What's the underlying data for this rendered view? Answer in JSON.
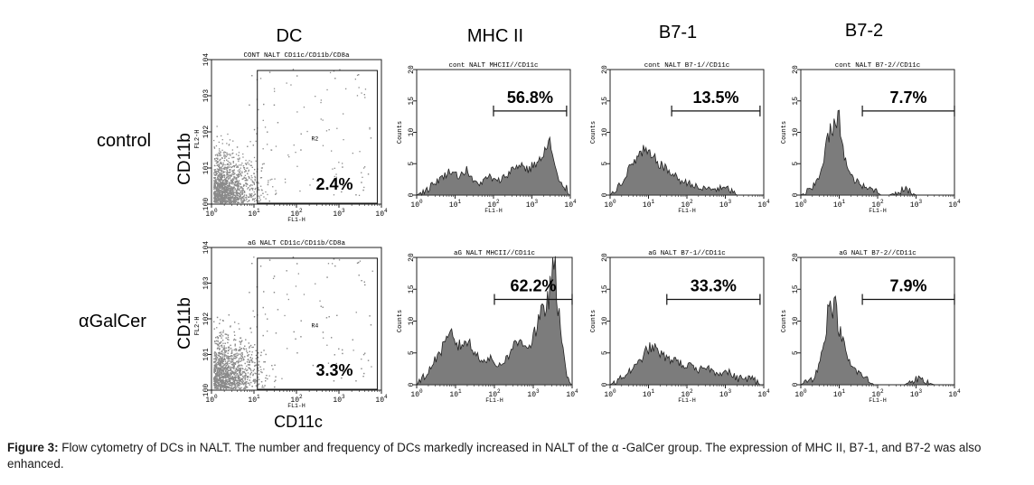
{
  "columns": [
    "DC",
    "MHC II",
    "B7-1",
    "B7-2"
  ],
  "rows": [
    "control",
    "αGalCer"
  ],
  "dot_ylabel": "CD11b",
  "dot_xlabel": "CD11c",
  "chart_data": [
    {
      "type": "scatter",
      "title": "CONT NALT CD11c/CD11b/CD8a",
      "xlabel": "FL1-H",
      "ylabel": "FL2-H",
      "x_scale": "log",
      "xlim": [
        1,
        10000
      ],
      "ylim": [
        1,
        10000
      ],
      "x_ticks": [
        "10^0",
        "10^1",
        "10^2",
        "10^3",
        "10^4"
      ],
      "y_ticks": [
        "10^0",
        "10^1",
        "10^2",
        "10^3",
        "10^4"
      ],
      "gate": {
        "label": "R2",
        "x_range": [
          12,
          8000
        ],
        "y_range": [
          1,
          5000
        ]
      },
      "annotation": "2.4%"
    },
    {
      "type": "area",
      "title": "cont NALT MHCII//CD11c",
      "xlabel": "FL1-H",
      "ylabel": "Counts",
      "x_scale": "log",
      "xlim": [
        1,
        10000
      ],
      "ylim": [
        0,
        20
      ],
      "y_ticks": [
        0,
        5,
        10,
        15,
        20
      ],
      "marker": {
        "x_range": [
          100,
          8000
        ],
        "label": "56.8%"
      },
      "x": [
        1,
        2,
        3,
        5,
        8,
        12,
        20,
        30,
        50,
        80,
        120,
        200,
        300,
        500,
        800,
        1200,
        2000,
        2800,
        3500,
        5000,
        8000,
        10000
      ],
      "values": [
        0,
        1,
        2,
        3,
        4,
        3,
        4,
        2,
        2,
        3,
        2,
        3,
        4,
        5,
        4,
        5,
        6,
        9,
        6,
        2,
        1,
        0
      ]
    },
    {
      "type": "area",
      "title": "cont NALT B7-1//CD11c",
      "xlabel": "FL1-H",
      "ylabel": "Counts",
      "x_scale": "log",
      "xlim": [
        1,
        10000
      ],
      "ylim": [
        0,
        20
      ],
      "y_ticks": [
        0,
        5,
        10,
        15,
        20
      ],
      "marker": {
        "x_range": [
          40,
          8000
        ],
        "label": "13.5%"
      },
      "x": [
        1,
        2,
        3,
        5,
        8,
        12,
        20,
        30,
        50,
        80,
        120,
        200,
        300,
        500,
        800,
        1200,
        2000,
        3000,
        5000,
        8000,
        10000
      ],
      "values": [
        0,
        2,
        4,
        6,
        7,
        6,
        5,
        4,
        3,
        2,
        2,
        1,
        1,
        1,
        1,
        1,
        0,
        0,
        0,
        0,
        0
      ]
    },
    {
      "type": "area",
      "title": "cont NALT B7-2//CD11c",
      "xlabel": "FL1-H",
      "ylabel": "Counts",
      "x_scale": "log",
      "xlim": [
        1,
        10000
      ],
      "ylim": [
        0,
        20
      ],
      "y_ticks": [
        0,
        5,
        10,
        15,
        20
      ],
      "marker": {
        "x_range": [
          40,
          10000
        ],
        "label": "7.7%"
      },
      "x": [
        1,
        2,
        3,
        4,
        5,
        6,
        8,
        10,
        12,
        15,
        20,
        30,
        50,
        80,
        120,
        200,
        500,
        1000,
        3000,
        10000
      ],
      "values": [
        0,
        1,
        3,
        6,
        9,
        10,
        11,
        12,
        9,
        5,
        3,
        2,
        1,
        1,
        0,
        0,
        1,
        0,
        0,
        0
      ]
    },
    {
      "type": "scatter",
      "title": "aG NALT CD11c/CD11b/CD8a",
      "xlabel": "FL1-H",
      "ylabel": "FL2-H",
      "x_scale": "log",
      "xlim": [
        1,
        10000
      ],
      "ylim": [
        1,
        10000
      ],
      "x_ticks": [
        "10^0",
        "10^1",
        "10^2",
        "10^3",
        "10^4"
      ],
      "y_ticks": [
        "10^0",
        "10^1",
        "10^2",
        "10^3",
        "10^4"
      ],
      "gate": {
        "label": "R4",
        "x_range": [
          12,
          8000
        ],
        "y_range": [
          1,
          5000
        ]
      },
      "annotation": "3.3%"
    },
    {
      "type": "area",
      "title": "aG NALT MHCII//CD11c",
      "xlabel": "FL1-H",
      "ylabel": "Counts",
      "x_scale": "log",
      "xlim": [
        1,
        10000
      ],
      "ylim": [
        0,
        20
      ],
      "y_ticks": [
        0,
        5,
        10,
        15,
        20
      ],
      "marker": {
        "x_range": [
          100,
          10000
        ],
        "label": "62.2%"
      },
      "x": [
        1,
        2,
        3,
        5,
        8,
        12,
        20,
        30,
        50,
        80,
        120,
        200,
        300,
        500,
        800,
        1200,
        2000,
        2800,
        3500,
        5000,
        7000,
        10000
      ],
      "values": [
        0,
        2,
        4,
        6,
        8,
        6,
        7,
        5,
        4,
        4,
        3,
        4,
        6,
        7,
        6,
        9,
        12,
        15,
        19,
        8,
        2,
        0
      ]
    },
    {
      "type": "area",
      "title": "aG NALT B7-1//CD11c",
      "xlabel": "FL1-H",
      "ylabel": "Counts",
      "x_scale": "log",
      "xlim": [
        1,
        10000
      ],
      "ylim": [
        0,
        20
      ],
      "y_ticks": [
        0,
        5,
        10,
        15,
        20
      ],
      "marker": {
        "x_range": [
          30,
          8000
        ],
        "label": "33.3%"
      },
      "x": [
        1,
        2,
        3,
        5,
        8,
        12,
        20,
        30,
        50,
        80,
        120,
        200,
        300,
        500,
        800,
        1200,
        2000,
        3000,
        5000,
        8000,
        10000
      ],
      "values": [
        0,
        1,
        2,
        3,
        5,
        6,
        5,
        4,
        4,
        3,
        3,
        2,
        3,
        2,
        2,
        2,
        1,
        1,
        1,
        0,
        0
      ]
    },
    {
      "type": "area",
      "title": "aG NALT B7-2//CD11c",
      "xlabel": "FL1-H",
      "ylabel": "Counts",
      "x_scale": "log",
      "xlim": [
        1,
        10000
      ],
      "ylim": [
        0,
        20
      ],
      "y_ticks": [
        0,
        5,
        10,
        15,
        20
      ],
      "marker": {
        "x_range": [
          40,
          10000
        ],
        "label": "7.9%"
      },
      "x": [
        1,
        2,
        3,
        4,
        5,
        6,
        8,
        10,
        12,
        15,
        20,
        30,
        50,
        80,
        120,
        200,
        500,
        1000,
        3000,
        10000
      ],
      "values": [
        0,
        1,
        3,
        7,
        11,
        13,
        12,
        9,
        7,
        5,
        3,
        2,
        1,
        0,
        0,
        0,
        0,
        1,
        0,
        0
      ]
    }
  ],
  "caption": {
    "label": "Figure 3:",
    "text": " Flow cytometry of DCs in NALT. The number and frequency of DCs markedly increased in NALT of the α -GalCer group. The expression of MHC II, B7-1, and B7-2 was also enhanced."
  }
}
